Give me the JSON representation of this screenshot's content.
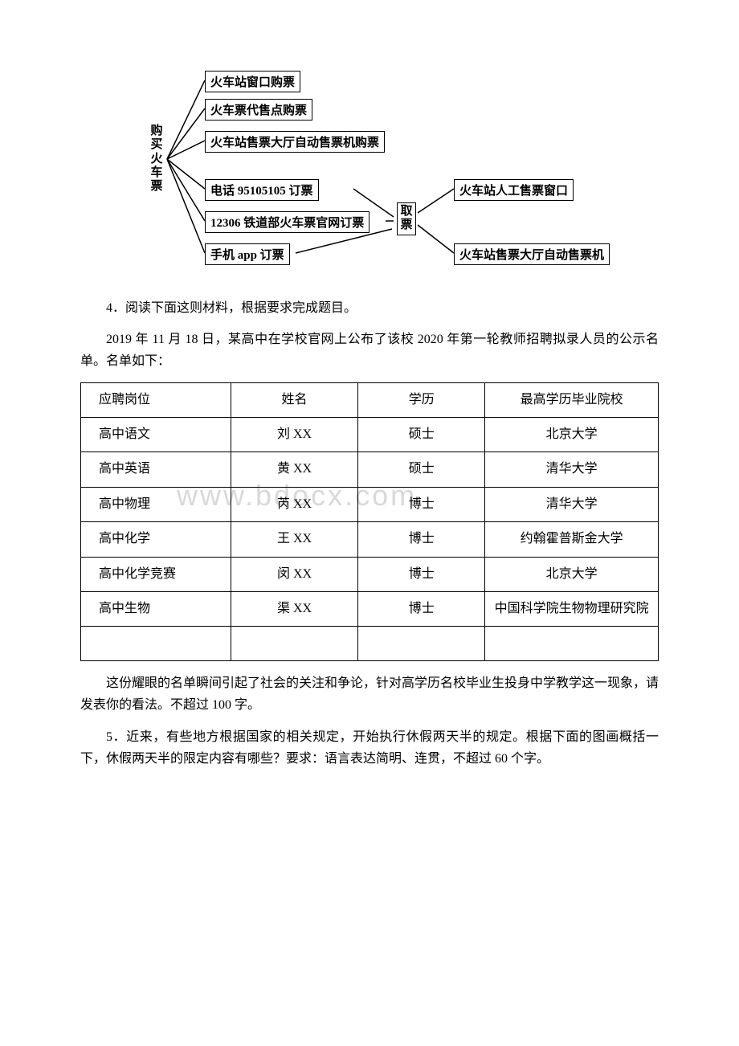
{
  "diagram": {
    "root_label": "购买火车票",
    "options": [
      "火车站窗口购票",
      "火车票代售点购票",
      "火车站售票大厅自动售票机购票",
      "电话 95105105 订票",
      "12306 铁道部火车票官网订票",
      "手机 app 订票"
    ],
    "pickup_label": "取票",
    "pickup_options": [
      "火车站人工售票窗口",
      "火车站售票大厅自动售票机"
    ],
    "colors": {
      "line": "#000000",
      "box_border": "#000000",
      "bg": "#ffffff"
    },
    "font_size": 15
  },
  "q4": {
    "prompt": "4．阅读下面这则材料，根据要求完成题目。",
    "intro": "2019 年 11 月 18 日，某高中在学校官网上公布了该校 2020 年第一轮教师招聘拟录人员的公示名单。名单如下：",
    "followup": "这份耀眼的名单瞬间引起了社会的关注和争论，针对高学历名校毕业生投身中学教学这一现象，请发表你的看法。不超过 100 字。"
  },
  "table": {
    "columns": [
      "应聘岗位",
      "姓名",
      "学历",
      "最高学历毕业院校"
    ],
    "rows": [
      [
        "高中语文",
        "刘 XX",
        "硕士",
        "北京大学"
      ],
      [
        "高中英语",
        "黄 XX",
        "硕士",
        "清华大学"
      ],
      [
        "高中物理",
        "芮 XX",
        "博士",
        "清华大学"
      ],
      [
        "高中化学",
        "王 XX",
        "博士",
        "约翰霍普斯金大学"
      ],
      [
        "高中化学竞赛",
        "闵 XX",
        "博士",
        "北京大学"
      ],
      [
        "高中生物",
        "渠 XX",
        "博士",
        "中国科学院生物物理研究院"
      ]
    ],
    "col_widths": [
      "26%",
      "22%",
      "22%",
      "30%"
    ],
    "watermark": "www.bdocx.com"
  },
  "q5": {
    "text": "5．近来，有些地方根据国家的相关规定，开始执行休假两天半的规定。根据下面的图画概括一下，休假两天半的限定内容有哪些？要求：语言表达简明、连贯，不超过 60 个字。"
  }
}
